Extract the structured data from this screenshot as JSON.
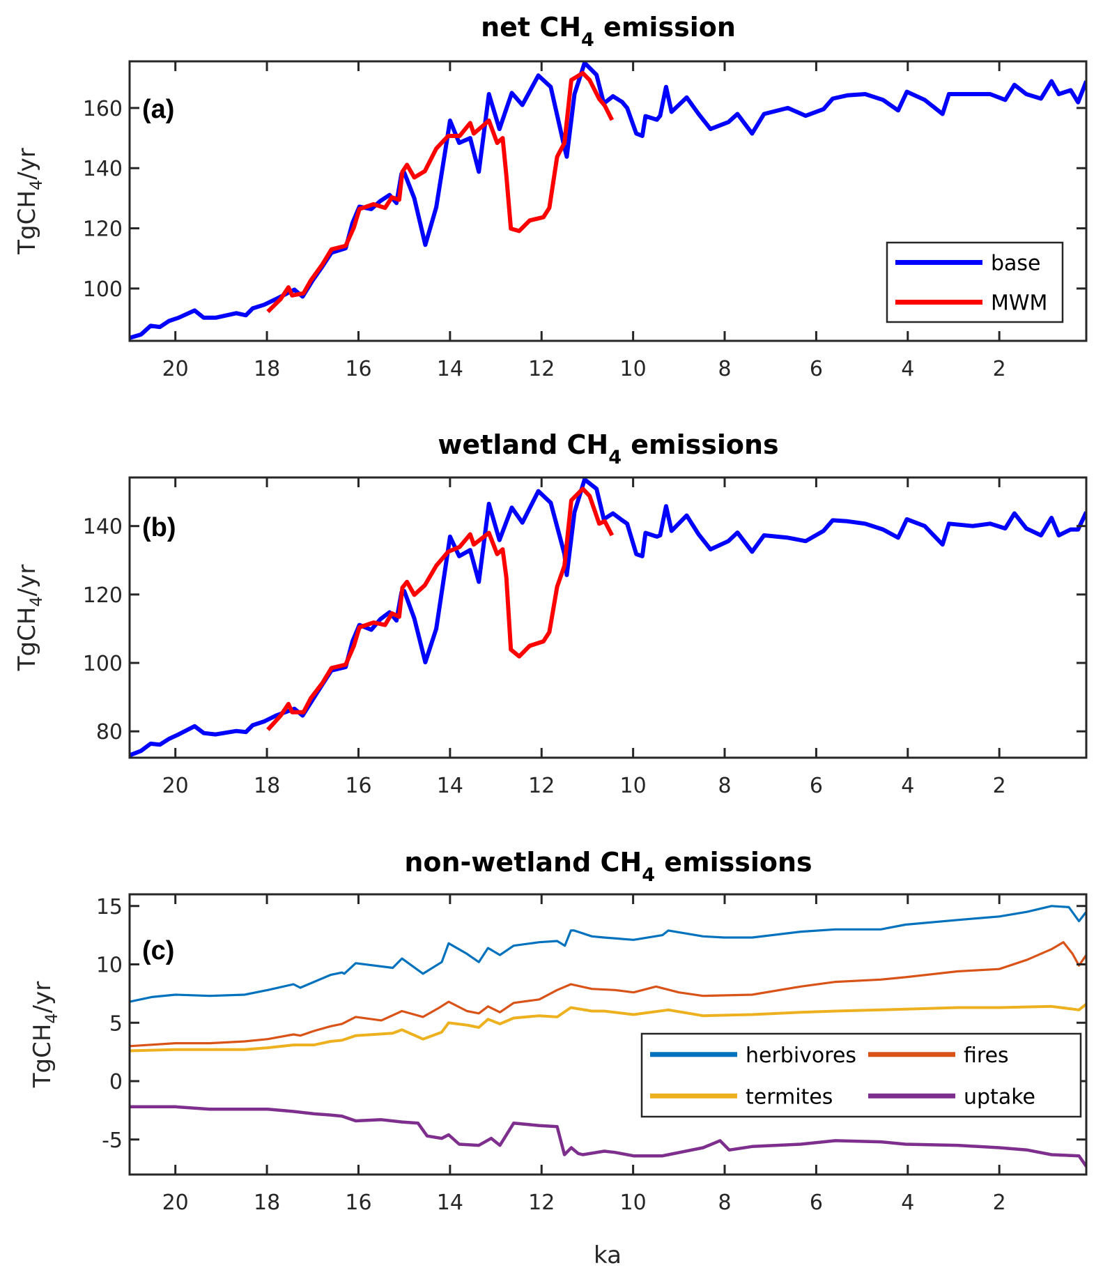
{
  "chart_data": [
    {
      "id": "a",
      "type": "line",
      "title": "net CH4 emission",
      "title_parts": {
        "before": "net CH",
        "sub": "4",
        "after": " emission"
      },
      "panel_label": "(a)",
      "xlabel": "",
      "ylabel": {
        "before": "TgCH",
        "sub": "4",
        "after": "/yr"
      },
      "xlim": [
        21.0,
        0.1
      ],
      "x_reversed": true,
      "ylim": [
        82.6,
        175.5
      ],
      "xticks": [
        20,
        18,
        16,
        14,
        12,
        10,
        8,
        6,
        4,
        2
      ],
      "yticks": [
        100,
        120,
        140,
        160
      ],
      "legend": {
        "placement": "lower-right",
        "columns": 1,
        "entries": [
          "base",
          "MWM"
        ]
      },
      "series": [
        {
          "name": "base",
          "color": "#0000ff",
          "x": [
            21.0,
            20.75,
            20.54,
            20.34,
            20.14,
            19.93,
            19.58,
            19.38,
            19.12,
            18.67,
            18.46,
            18.31,
            18.06,
            17.8,
            17.4,
            17.22,
            17.0,
            16.79,
            16.59,
            16.28,
            16.13,
            15.98,
            15.72,
            15.52,
            15.32,
            15.17,
            15.06,
            15.0,
            14.78,
            14.54,
            14.3,
            14.0,
            13.8,
            13.56,
            13.37,
            13.15,
            12.92,
            12.65,
            12.42,
            12.07,
            11.8,
            11.5,
            11.45,
            11.28,
            11.06,
            10.8,
            10.64,
            10.44,
            10.24,
            10.13,
            9.93,
            9.8,
            9.73,
            9.48,
            9.41,
            9.28,
            9.16,
            8.83,
            8.57,
            8.31,
            7.92,
            7.72,
            7.4,
            7.14,
            6.62,
            6.23,
            5.84,
            5.64,
            5.32,
            4.93,
            4.54,
            4.21,
            4.02,
            3.63,
            3.24,
            3.1,
            2.58,
            2.2,
            1.87,
            1.67,
            1.41,
            1.09,
            0.86,
            0.7,
            0.44,
            0.28,
            0.1
          ],
          "y": [
            83.6,
            84.7,
            87.6,
            87.2,
            89.2,
            90.3,
            92.7,
            90.3,
            90.3,
            91.8,
            91.1,
            93.4,
            94.6,
            96.5,
            99.6,
            97.3,
            102.7,
            107.3,
            111.9,
            113.4,
            121.8,
            127.2,
            126.4,
            129.1,
            131.1,
            128.4,
            138.1,
            138.5,
            130.0,
            114.5,
            127.0,
            155.8,
            148.4,
            150.0,
            138.8,
            164.6,
            153.0,
            165.0,
            161.0,
            170.8,
            167.0,
            146.9,
            143.8,
            164.6,
            175.0,
            171.0,
            161.5,
            163.9,
            162.0,
            160.0,
            151.5,
            150.7,
            157.3,
            156.1,
            157.4,
            167.0,
            158.7,
            163.5,
            158.0,
            153.0,
            155.3,
            158.0,
            151.5,
            158.0,
            160.0,
            157.4,
            159.6,
            163.1,
            164.2,
            164.6,
            162.7,
            159.2,
            165.4,
            162.7,
            158.0,
            164.6,
            164.6,
            164.6,
            162.7,
            167.7,
            164.6,
            163.1,
            168.9,
            164.6,
            165.9,
            161.9,
            168.9
          ]
        },
        {
          "name": "MWM",
          "color": "#ff0000",
          "x": [
            17.98,
            17.7,
            17.53,
            17.45,
            17.2,
            17.04,
            16.79,
            16.59,
            16.28,
            16.1,
            15.98,
            15.67,
            15.42,
            15.27,
            15.11,
            15.04,
            14.94,
            14.78,
            14.55,
            14.3,
            14.04,
            13.79,
            13.56,
            13.48,
            13.15,
            12.97,
            12.85,
            12.77,
            12.67,
            12.49,
            12.26,
            11.96,
            11.83,
            11.66,
            11.5,
            11.35,
            11.1,
            10.95,
            10.74,
            10.62,
            10.46
          ],
          "y": [
            92.3,
            96.5,
            100.4,
            97.7,
            98.4,
            102.7,
            108.0,
            113.0,
            114.2,
            120.3,
            126.4,
            128.0,
            126.8,
            130.3,
            129.5,
            138.8,
            141.1,
            136.9,
            139.0,
            146.5,
            150.7,
            150.7,
            155.0,
            151.5,
            155.8,
            148.4,
            150.0,
            137.6,
            119.9,
            119.1,
            122.6,
            123.7,
            126.8,
            143.8,
            148.4,
            169.3,
            171.6,
            169.3,
            163.0,
            160.8,
            156.0
          ]
        }
      ]
    },
    {
      "id": "b",
      "type": "line",
      "title": "wetland CH4 emissions",
      "title_parts": {
        "before": "wetland CH",
        "sub": "4",
        "after": " emissions"
      },
      "panel_label": "(b)",
      "xlabel": "",
      "ylabel": {
        "before": "TgCH",
        "sub": "4",
        "after": "/yr"
      },
      "xlim": [
        21.0,
        0.1
      ],
      "x_reversed": true,
      "ylim": [
        72.3,
        154.2
      ],
      "xticks": [
        20,
        18,
        16,
        14,
        12,
        10,
        8,
        6,
        4,
        2
      ],
      "yticks": [
        80,
        100,
        120,
        140
      ],
      "series": [
        {
          "name": "base",
          "color": "#0000ff",
          "x": [
            21.0,
            20.75,
            20.54,
            20.34,
            20.14,
            19.93,
            19.58,
            19.38,
            19.12,
            18.67,
            18.46,
            18.31,
            18.06,
            17.8,
            17.4,
            17.22,
            17.0,
            16.79,
            16.59,
            16.28,
            16.13,
            15.98,
            15.72,
            15.52,
            15.32,
            15.17,
            15.06,
            15.0,
            14.78,
            14.54,
            14.3,
            14.0,
            13.8,
            13.56,
            13.37,
            13.15,
            12.92,
            12.65,
            12.42,
            12.07,
            11.8,
            11.5,
            11.45,
            11.28,
            11.06,
            10.8,
            10.64,
            10.44,
            10.24,
            10.13,
            9.93,
            9.8,
            9.73,
            9.48,
            9.41,
            9.28,
            9.16,
            8.83,
            8.57,
            8.31,
            7.92,
            7.72,
            7.4,
            7.14,
            6.62,
            6.23,
            5.84,
            5.64,
            5.32,
            4.93,
            4.54,
            4.21,
            4.02,
            3.63,
            3.24,
            3.1,
            2.58,
            2.2,
            1.87,
            1.67,
            1.41,
            1.09,
            0.86,
            0.7,
            0.44,
            0.28,
            0.1
          ],
          "y": [
            73.0,
            74.3,
            76.4,
            76.1,
            77.8,
            79.1,
            81.5,
            79.5,
            79.1,
            80.1,
            79.8,
            81.8,
            82.9,
            84.6,
            86.6,
            84.6,
            89.3,
            93.7,
            97.8,
            98.8,
            106.3,
            111.1,
            109.7,
            112.8,
            114.8,
            112.4,
            120.6,
            121.0,
            113.0,
            100.2,
            110.0,
            136.9,
            131.2,
            133.0,
            123.7,
            146.5,
            135.9,
            145.4,
            141.0,
            150.2,
            146.8,
            131.8,
            125.7,
            144.1,
            153.6,
            150.9,
            142.0,
            143.7,
            141.7,
            140.7,
            131.8,
            131.2,
            138.0,
            136.9,
            137.3,
            145.8,
            138.6,
            143.1,
            137.6,
            133.2,
            135.6,
            138.1,
            132.5,
            137.3,
            136.6,
            135.6,
            138.6,
            141.7,
            141.4,
            140.7,
            139.0,
            136.6,
            142.0,
            140.0,
            134.6,
            140.7,
            140.0,
            140.7,
            139.3,
            143.7,
            139.3,
            137.3,
            142.4,
            137.3,
            139.0,
            139.0,
            144.1
          ]
        },
        {
          "name": "MWM",
          "color": "#ff0000",
          "x": [
            17.98,
            17.7,
            17.53,
            17.45,
            17.2,
            17.04,
            16.79,
            16.59,
            16.28,
            16.1,
            15.98,
            15.67,
            15.42,
            15.27,
            15.11,
            15.04,
            14.94,
            14.78,
            14.55,
            14.3,
            14.04,
            13.79,
            13.56,
            13.48,
            13.15,
            12.97,
            12.85,
            12.77,
            12.67,
            12.49,
            12.26,
            11.96,
            11.83,
            11.66,
            11.5,
            11.35,
            11.1,
            10.95,
            10.74,
            10.62,
            10.46
          ],
          "y": [
            80.5,
            84.6,
            88.0,
            85.6,
            85.6,
            89.7,
            94.1,
            98.5,
            99.5,
            105.0,
            110.4,
            111.8,
            111.1,
            114.5,
            113.5,
            122.0,
            123.7,
            119.9,
            122.7,
            128.4,
            132.5,
            133.9,
            137.6,
            134.6,
            138.0,
            131.8,
            133.2,
            125.0,
            103.9,
            101.9,
            105.0,
            106.3,
            109.0,
            122.3,
            128.4,
            147.5,
            150.9,
            148.8,
            140.7,
            141.4,
            137.3
          ]
        }
      ]
    },
    {
      "id": "c",
      "type": "line",
      "title": "non-wetland CH4 emissions",
      "title_parts": {
        "before": "non-wetland CH",
        "sub": "4",
        "after": " emissions"
      },
      "panel_label": "(c)",
      "xlabel": "ka",
      "ylabel": {
        "before": "TgCH",
        "sub": "4",
        "after": "/yr"
      },
      "xlim": [
        21.0,
        0.1
      ],
      "x_reversed": true,
      "ylim": [
        -8,
        16
      ],
      "xticks": [
        20,
        18,
        16,
        14,
        12,
        10,
        8,
        6,
        4,
        2
      ],
      "yticks": [
        -5,
        0,
        5,
        10,
        15
      ],
      "legend": {
        "placement": "lower-right",
        "columns": 2,
        "entries": [
          "herbivores",
          "fires",
          "termites",
          "uptake"
        ]
      },
      "series": [
        {
          "name": "herbivores",
          "color": "#0072bd",
          "x": [
            21.0,
            20.52,
            20.0,
            19.25,
            18.49,
            17.98,
            17.42,
            17.27,
            16.97,
            16.61,
            16.36,
            16.31,
            16.06,
            15.25,
            15.05,
            14.59,
            14.18,
            14.03,
            13.63,
            13.37,
            13.17,
            12.91,
            12.61,
            12.05,
            11.66,
            11.49,
            11.36,
            11.29,
            10.9,
            10.63,
            9.99,
            9.36,
            9.23,
            8.47,
            8.01,
            7.4,
            6.34,
            5.58,
            4.59,
            4.05,
            2.91,
            2.0,
            1.39,
            0.86,
            0.48,
            0.26,
            0.1
          ],
          "y": [
            6.8,
            7.2,
            7.4,
            7.3,
            7.4,
            7.8,
            8.3,
            8.0,
            8.5,
            9.1,
            9.3,
            9.2,
            10.1,
            9.7,
            10.5,
            9.2,
            10.2,
            11.8,
            10.9,
            10.2,
            11.4,
            10.8,
            11.6,
            11.9,
            12.0,
            11.6,
            12.9,
            12.9,
            12.4,
            12.3,
            12.1,
            12.5,
            12.9,
            12.4,
            12.3,
            12.3,
            12.8,
            13.0,
            13.0,
            13.4,
            13.8,
            14.1,
            14.5,
            15.0,
            14.9,
            13.7,
            14.5
          ]
        },
        {
          "name": "fires",
          "color": "#d95319",
          "x": [
            21.0,
            20.0,
            19.25,
            18.49,
            17.98,
            17.42,
            17.27,
            16.97,
            16.61,
            16.36,
            16.06,
            15.5,
            15.05,
            14.59,
            14.23,
            14.03,
            13.63,
            13.37,
            13.17,
            12.91,
            12.61,
            12.05,
            11.66,
            11.36,
            10.9,
            10.4,
            9.99,
            9.5,
            9.0,
            8.47,
            7.4,
            6.34,
            5.58,
            4.59,
            4.05,
            2.91,
            2.0,
            1.39,
            0.86,
            0.6,
            0.4,
            0.26,
            0.1
          ],
          "y": [
            3.0,
            3.25,
            3.25,
            3.4,
            3.6,
            4.0,
            3.9,
            4.3,
            4.7,
            4.9,
            5.5,
            5.2,
            6.0,
            5.5,
            6.3,
            6.8,
            6.0,
            5.8,
            6.4,
            5.9,
            6.7,
            7.0,
            7.8,
            8.3,
            7.9,
            7.8,
            7.6,
            8.1,
            7.6,
            7.3,
            7.4,
            8.1,
            8.5,
            8.7,
            8.9,
            9.4,
            9.6,
            10.4,
            11.3,
            11.9,
            10.9,
            9.9,
            10.8
          ]
        },
        {
          "name": "termites",
          "color": "#edb120",
          "x": [
            21.0,
            20.0,
            19.25,
            18.49,
            17.98,
            17.42,
            16.97,
            16.61,
            16.36,
            16.06,
            15.25,
            15.05,
            14.59,
            14.18,
            14.03,
            13.63,
            13.37,
            13.17,
            12.91,
            12.61,
            12.05,
            11.66,
            11.36,
            10.9,
            10.63,
            9.99,
            9.23,
            8.47,
            7.4,
            6.34,
            5.58,
            4.59,
            2.91,
            2.0,
            0.86,
            0.26,
            0.1
          ],
          "y": [
            2.6,
            2.7,
            2.7,
            2.7,
            2.86,
            3.1,
            3.1,
            3.4,
            3.5,
            3.9,
            4.1,
            4.4,
            3.6,
            4.2,
            5.0,
            4.8,
            4.6,
            5.3,
            4.9,
            5.4,
            5.6,
            5.5,
            6.3,
            6.0,
            6.0,
            5.7,
            6.1,
            5.6,
            5.7,
            5.9,
            6.0,
            6.1,
            6.3,
            6.3,
            6.4,
            6.1,
            6.6
          ]
        },
        {
          "name": "uptake",
          "color": "#7e2f8e",
          "x": [
            21.0,
            20.0,
            19.25,
            18.49,
            17.98,
            17.42,
            16.97,
            16.61,
            16.36,
            16.06,
            15.5,
            15.05,
            14.7,
            14.5,
            14.18,
            14.03,
            13.8,
            13.37,
            13.1,
            12.91,
            12.61,
            12.05,
            11.66,
            11.5,
            11.35,
            11.2,
            11.1,
            10.63,
            10.4,
            9.99,
            9.36,
            9.23,
            8.47,
            8.1,
            7.9,
            7.4,
            6.34,
            5.58,
            4.59,
            4.05,
            2.91,
            2.0,
            1.39,
            0.86,
            0.26,
            0.1
          ],
          "y": [
            -2.2,
            -2.2,
            -2.4,
            -2.4,
            -2.4,
            -2.6,
            -2.8,
            -2.9,
            -3.0,
            -3.4,
            -3.3,
            -3.5,
            -3.6,
            -4.7,
            -4.9,
            -4.6,
            -5.4,
            -5.5,
            -4.9,
            -5.5,
            -3.6,
            -3.8,
            -3.9,
            -6.3,
            -5.7,
            -6.2,
            -6.3,
            -6.0,
            -6.1,
            -6.4,
            -6.4,
            -6.3,
            -5.7,
            -5.1,
            -5.9,
            -5.6,
            -5.4,
            -5.1,
            -5.2,
            -5.4,
            -5.5,
            -5.7,
            -5.9,
            -6.3,
            -6.4,
            -7.3
          ]
        }
      ]
    }
  ]
}
